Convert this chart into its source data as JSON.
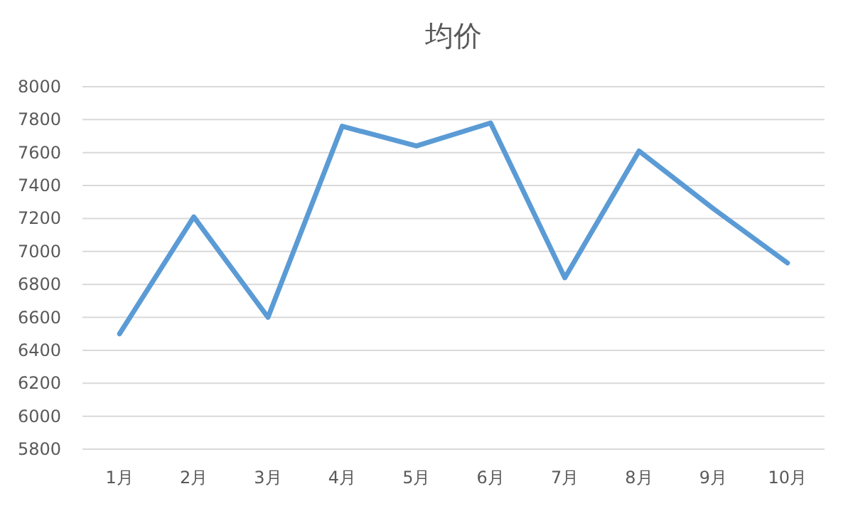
{
  "chart_data": {
    "type": "line",
    "title": "均价",
    "categories": [
      "1月",
      "2月",
      "3月",
      "4月",
      "5月",
      "6月",
      "7月",
      "8月",
      "9月",
      "10月"
    ],
    "series": [
      {
        "color": "#5b9bd5",
        "values": [
          6500,
          7210,
          6600,
          7760,
          7640,
          7780,
          6840,
          7610,
          7260,
          6930
        ]
      }
    ],
    "ylim": [
      5800,
      8000
    ],
    "yticks": [
      5800,
      6000,
      6200,
      6400,
      6600,
      6800,
      7000,
      7200,
      7400,
      7600,
      7800,
      8000
    ],
    "grid": "y",
    "marker": "none",
    "line_style": "solid"
  }
}
